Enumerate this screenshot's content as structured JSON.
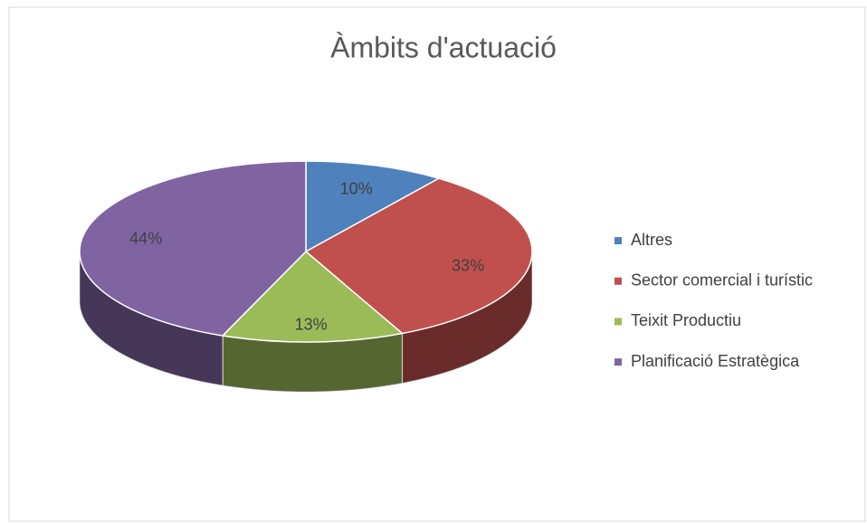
{
  "chart_data": {
    "type": "pie",
    "title": "Àmbits d'actuació",
    "categories": [
      "Altres",
      "Sector comercial i turístic",
      "Teixit Productiu",
      "Planificació Estratègica"
    ],
    "values": [
      10,
      33,
      13,
      44
    ],
    "value_labels": [
      "10%",
      "33%",
      "13%",
      "44%"
    ],
    "colors": [
      "#4f81bd",
      "#c0504d",
      "#9bbb59",
      "#8064a2"
    ],
    "legend": "right"
  }
}
